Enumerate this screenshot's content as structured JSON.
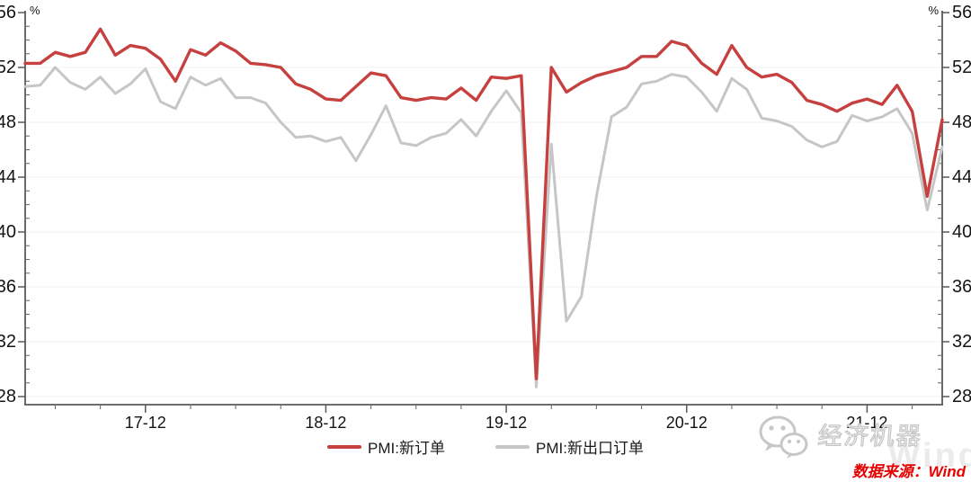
{
  "axes": {
    "y_unit_left": "%",
    "y_unit_right": "%"
  },
  "chart_data": {
    "type": "line",
    "title": "",
    "xlabel": "",
    "ylabel": "%",
    "ylim": [
      28,
      56
    ],
    "y_major_ticks": [
      28,
      32,
      36,
      40,
      44,
      48,
      52,
      56
    ],
    "y_minor_step": 1,
    "grid": "horizontal-major",
    "legend_position": "bottom-center",
    "x_major_tick_labels": [
      "17-12",
      "18-12",
      "19-12",
      "20-12",
      "21-12"
    ],
    "x_minor_tick_every_months": 3,
    "x": [
      "17-04",
      "17-05",
      "17-06",
      "17-07",
      "17-08",
      "17-09",
      "17-10",
      "17-11",
      "17-12",
      "18-01",
      "18-02",
      "18-03",
      "18-04",
      "18-05",
      "18-06",
      "18-07",
      "18-08",
      "18-09",
      "18-10",
      "18-11",
      "18-12",
      "19-01",
      "19-02",
      "19-03",
      "19-04",
      "19-05",
      "19-06",
      "19-07",
      "19-08",
      "19-09",
      "19-10",
      "19-11",
      "19-12",
      "20-01",
      "20-02",
      "20-03",
      "20-04",
      "20-05",
      "20-06",
      "20-07",
      "20-08",
      "20-09",
      "20-10",
      "20-11",
      "20-12",
      "21-01",
      "21-02",
      "21-03",
      "21-04",
      "21-05",
      "21-06",
      "21-07",
      "21-08",
      "21-09",
      "21-10",
      "21-11",
      "21-12",
      "22-01",
      "22-02",
      "22-03",
      "22-04",
      "22-05"
    ],
    "series": [
      {
        "name": "PMI:新订单",
        "color": "#c5403e",
        "values": [
          52.3,
          52.3,
          53.1,
          52.8,
          53.1,
          54.8,
          52.9,
          53.6,
          53.4,
          52.6,
          51.0,
          53.3,
          52.9,
          53.8,
          53.2,
          52.3,
          52.2,
          52.0,
          50.8,
          50.4,
          49.7,
          49.6,
          50.6,
          51.6,
          51.4,
          49.8,
          49.6,
          49.8,
          49.7,
          50.5,
          49.6,
          51.3,
          51.2,
          51.4,
          29.3,
          52.0,
          50.2,
          50.9,
          51.4,
          51.7,
          52.0,
          52.8,
          52.8,
          53.9,
          53.6,
          52.3,
          51.5,
          53.6,
          52.0,
          51.3,
          51.5,
          50.9,
          49.6,
          49.3,
          48.8,
          49.4,
          49.7,
          49.3,
          50.7,
          48.8,
          42.6,
          48.2
        ]
      },
      {
        "name": "PMI:新出口订单",
        "color": "#c6c6c6",
        "values": [
          50.6,
          50.7,
          52.0,
          50.9,
          50.4,
          51.3,
          50.1,
          50.8,
          51.9,
          49.5,
          49.0,
          51.3,
          50.7,
          51.2,
          49.8,
          49.8,
          49.4,
          48.0,
          46.9,
          47.0,
          46.6,
          46.9,
          45.2,
          47.1,
          49.2,
          46.5,
          46.3,
          46.9,
          47.2,
          48.2,
          47.0,
          48.8,
          50.3,
          48.7,
          28.7,
          46.4,
          33.5,
          35.3,
          42.6,
          48.4,
          49.1,
          50.8,
          51.0,
          51.5,
          51.3,
          50.2,
          48.8,
          51.2,
          50.4,
          48.3,
          48.1,
          47.7,
          46.7,
          46.2,
          46.6,
          48.5,
          48.1,
          48.4,
          49.0,
          47.2,
          41.6,
          46.2
        ]
      }
    ]
  },
  "footer": {
    "wechat_account": "经济机器",
    "brand_watermark": "Wind",
    "source": "数据来源：Wind",
    "source_color": "#e60000"
  }
}
